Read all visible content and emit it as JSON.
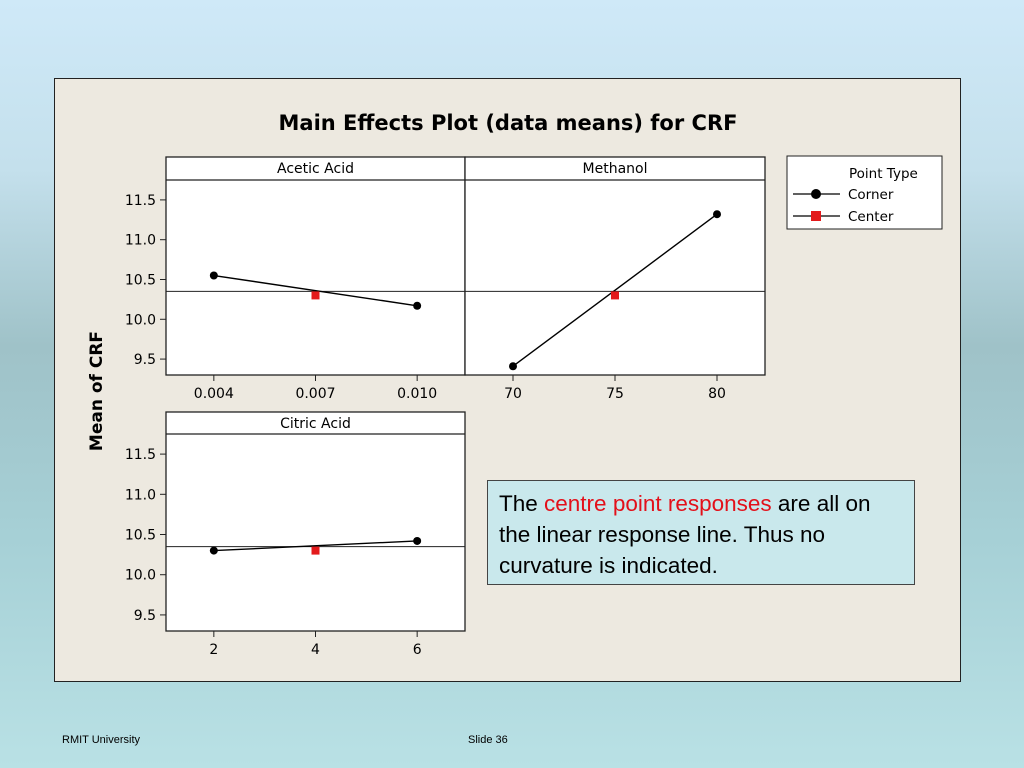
{
  "footer": {
    "left": "RMIT University",
    "right": "Slide 36"
  },
  "note": {
    "before": "The ",
    "highlight": "centre point responses",
    "after": " are all on the linear response line. Thus no curvature is indicated.",
    "highlight_color": "#e3101a"
  },
  "colors": {
    "corner": "#000000",
    "center": "#e31a1c",
    "frame_bg": "#ede9e0",
    "panel_bg": "#ffffff"
  },
  "chart_data": {
    "type": "line",
    "title": "Main Effects Plot (data means) for CRF",
    "ylabel": "Mean of CRF",
    "ylim": [
      9.3,
      11.75
    ],
    "yticks": [
      9.5,
      10.0,
      10.5,
      11.0,
      11.5
    ],
    "reference_line": 10.35,
    "legend": {
      "title": "Point Type",
      "placement": "right",
      "entries": [
        {
          "name": "Corner",
          "marker": "circle",
          "color": "#000000"
        },
        {
          "name": "Center",
          "marker": "square",
          "color": "#e31a1c"
        }
      ]
    },
    "panels": [
      {
        "factor": "Acetic Acid",
        "x_ticks": [
          "0.004",
          "0.007",
          "0.010"
        ],
        "corner": {
          "x": [
            "0.004",
            "0.010"
          ],
          "y": [
            10.55,
            10.17
          ]
        },
        "center": {
          "x": [
            "0.007"
          ],
          "y": [
            10.3
          ]
        }
      },
      {
        "factor": "Methanol",
        "x_ticks": [
          "70",
          "75",
          "80"
        ],
        "corner": {
          "x": [
            "70",
            "80"
          ],
          "y": [
            9.41,
            11.32
          ]
        },
        "center": {
          "x": [
            "75"
          ],
          "y": [
            10.3
          ]
        }
      },
      {
        "factor": "Citric Acid",
        "x_ticks": [
          "2",
          "4",
          "6"
        ],
        "corner": {
          "x": [
            "2",
            "6"
          ],
          "y": [
            10.3,
            10.42
          ]
        },
        "center": {
          "x": [
            "4"
          ],
          "y": [
            10.3
          ]
        }
      }
    ]
  }
}
